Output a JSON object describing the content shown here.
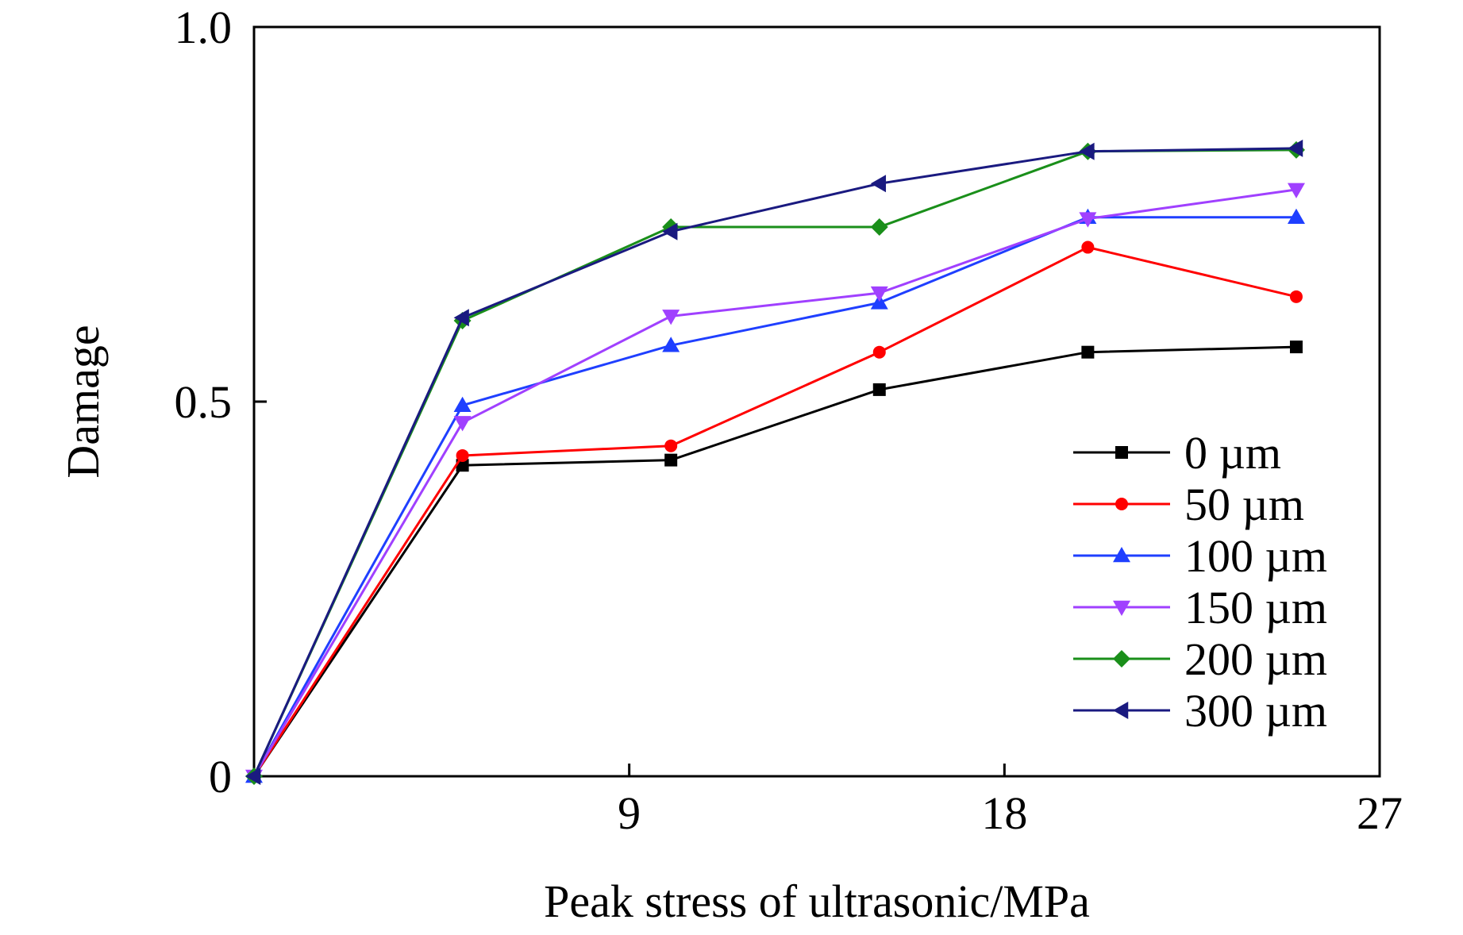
{
  "chart_data": {
    "type": "line",
    "title": "",
    "xlabel": "Peak stress of ultrasonic/MPa",
    "ylabel": "Damage",
    "xlim": [
      0,
      27
    ],
    "ylim": [
      0,
      1.0
    ],
    "xticks": [
      9,
      18,
      27
    ],
    "xtick_labels": [
      "9",
      "18",
      "27"
    ],
    "yticks": [
      0,
      0.5,
      1.0
    ],
    "ytick_labels": [
      "0",
      "0.5",
      "1.0"
    ],
    "legend_position": "right",
    "x": [
      0,
      5,
      10,
      15,
      20,
      25
    ],
    "series": [
      {
        "name": "0 µm",
        "color": "#000000",
        "marker": "square",
        "values": [
          0,
          0.415,
          0.422,
          0.516,
          0.566,
          0.573
        ]
      },
      {
        "name": "50 µm",
        "color": "#ff0000",
        "marker": "circle",
        "values": [
          0,
          0.428,
          0.441,
          0.566,
          0.706,
          0.64
        ]
      },
      {
        "name": "100 µm",
        "color": "#1f3fff",
        "marker": "triangle-up",
        "values": [
          0,
          0.495,
          0.575,
          0.632,
          0.746,
          0.746
        ]
      },
      {
        "name": "150 µm",
        "color": "#a040ff",
        "marker": "triangle-down",
        "values": [
          0,
          0.472,
          0.614,
          0.645,
          0.744,
          0.783
        ]
      },
      {
        "name": "200 µm",
        "color": "#1a8f1a",
        "marker": "diamond",
        "values": [
          0,
          0.608,
          0.733,
          0.733,
          0.834,
          0.836
        ]
      },
      {
        "name": "300 µm",
        "color": "#1a1a80",
        "marker": "triangle-left",
        "values": [
          0,
          0.612,
          0.727,
          0.791,
          0.834,
          0.838
        ]
      }
    ]
  }
}
